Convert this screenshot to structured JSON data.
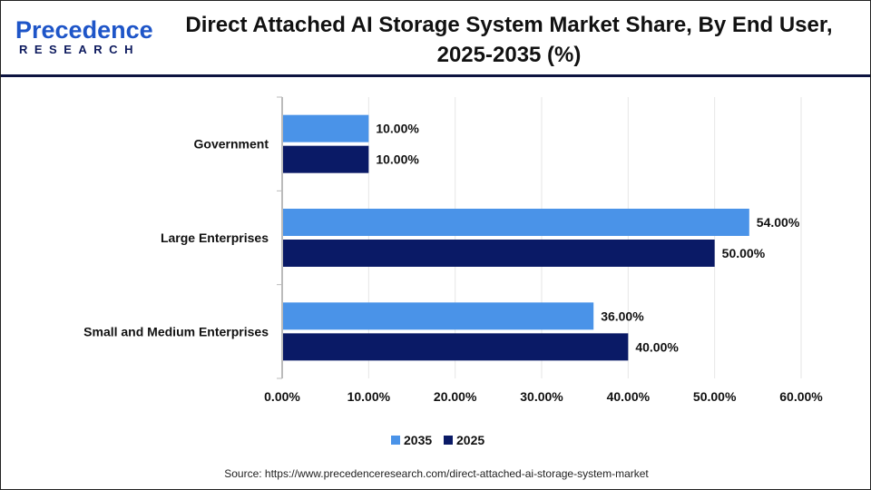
{
  "logo": {
    "line1_a": "P",
    "line1_b": "recedence",
    "line2": "RESEARCH"
  },
  "title": "Direct Attached AI Storage System Market Share, By End User, 2025-2035 (%)",
  "source": "Source: https://www.precedenceresearch.com/direct-attached-ai-storage-system-market",
  "colors": {
    "2035": "#4a93e8",
    "2025": "#0a1a66"
  },
  "chart_data": {
    "type": "bar",
    "orientation": "horizontal",
    "title": "Direct Attached AI Storage System Market Share, By End User, 2025-2035 (%)",
    "categories": [
      "Government",
      "Large Enterprises",
      "Small and Medium Enterprises"
    ],
    "series": [
      {
        "name": "2035",
        "values": [
          10,
          54,
          36
        ],
        "labels": [
          "10.00%",
          "54.00%",
          "36.00%"
        ]
      },
      {
        "name": "2025",
        "values": [
          10,
          50,
          40
        ],
        "labels": [
          "10.00%",
          "50.00%",
          "40.00%"
        ]
      }
    ],
    "xlim": [
      0,
      60
    ],
    "xticks": [
      "0.00%",
      "10.00%",
      "20.00%",
      "30.00%",
      "40.00%",
      "50.00%",
      "60.00%"
    ],
    "grid": true,
    "legend": "bottom"
  }
}
